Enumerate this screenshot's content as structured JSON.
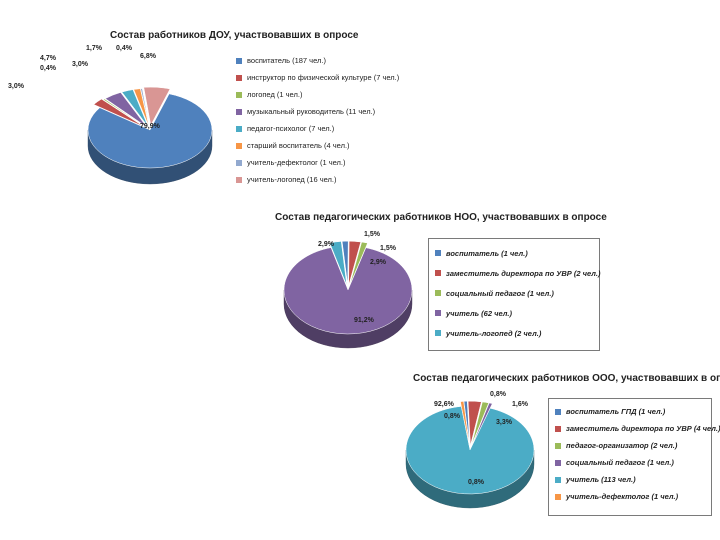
{
  "chart_data": [
    {
      "type": "pie",
      "title": "Состав работников ДОУ, участвовавших  в опросе",
      "slices": [
        {
          "label": "воспитатель (187 чел.)",
          "value": 79.9,
          "display": "79,9%",
          "color": "#4f81bd"
        },
        {
          "label": "инструктор по физической культуре (7 чел.)",
          "value": 3.0,
          "display": "3,0%",
          "color": "#c0504d"
        },
        {
          "label": "логопед (1 чел.)",
          "value": 0.4,
          "display": "0,4%",
          "color": "#9bbb59"
        },
        {
          "label": "музыкальный руководитель (11 чел.)",
          "value": 4.7,
          "display": "4,7%",
          "color": "#8064a2"
        },
        {
          "label": "педагог-психолог (7 чел.)",
          "value": 3.0,
          "display": "3,0%",
          "color": "#4bacc6"
        },
        {
          "label": "старший воспитатель (4 чел.)",
          "value": 1.7,
          "display": "1,7%",
          "color": "#f79646"
        },
        {
          "label": "учитель-дефектолог (1 чел.)",
          "value": 0.4,
          "display": "0,4%",
          "color": "#92a9cf"
        },
        {
          "label": "учитель-логопед (16 чел.)",
          "value": 6.8,
          "display": "6,8%",
          "color": "#d99694"
        }
      ]
    },
    {
      "type": "pie",
      "title": "Состав педагогических работников НОО, участвовавших в опросе",
      "slices": [
        {
          "label": "воспитатель (1 чел.)",
          "value": 1.5,
          "display": "1,5%",
          "color": "#4f81bd"
        },
        {
          "label": "заместитель директора по УВР (2 чел.)",
          "value": 2.9,
          "display": "2,9%",
          "color": "#c0504d"
        },
        {
          "label": "социальный педагог (1 чел.)",
          "value": 1.5,
          "display": "1,5%",
          "color": "#9bbb59"
        },
        {
          "label": "учитель (62 чел.)",
          "value": 91.2,
          "display": "91,2%",
          "color": "#8064a2"
        },
        {
          "label": "учитель-логопед (2 чел.)",
          "value": 2.9,
          "display": "2,9%",
          "color": "#4bacc6"
        }
      ]
    },
    {
      "type": "pie",
      "title": "Состав педагогических работников  ООО, участвовавших  в опросе",
      "slices": [
        {
          "label": "воспитатель ГПД (1 чел.)",
          "value": 0.8,
          "display": "0,8%",
          "color": "#4f81bd"
        },
        {
          "label": "заместитель директора по УВР (4 чел.)",
          "value": 3.3,
          "display": "3,3%",
          "color": "#c0504d"
        },
        {
          "label": "педагог-организатор (2 чел.)",
          "value": 1.6,
          "display": "1,6%",
          "color": "#9bbb59"
        },
        {
          "label": "социальный педагог (1 чел.)",
          "value": 0.8,
          "display": "0,8%",
          "color": "#8064a2"
        },
        {
          "label": "учитель (113 чел.)",
          "value": 92.6,
          "display": "92,6%",
          "color": "#4bacc6"
        },
        {
          "label": "учитель-дефектолог (1 чел.)",
          "value": 0.8,
          "display": "0,8%",
          "color": "#f79646"
        }
      ]
    }
  ]
}
